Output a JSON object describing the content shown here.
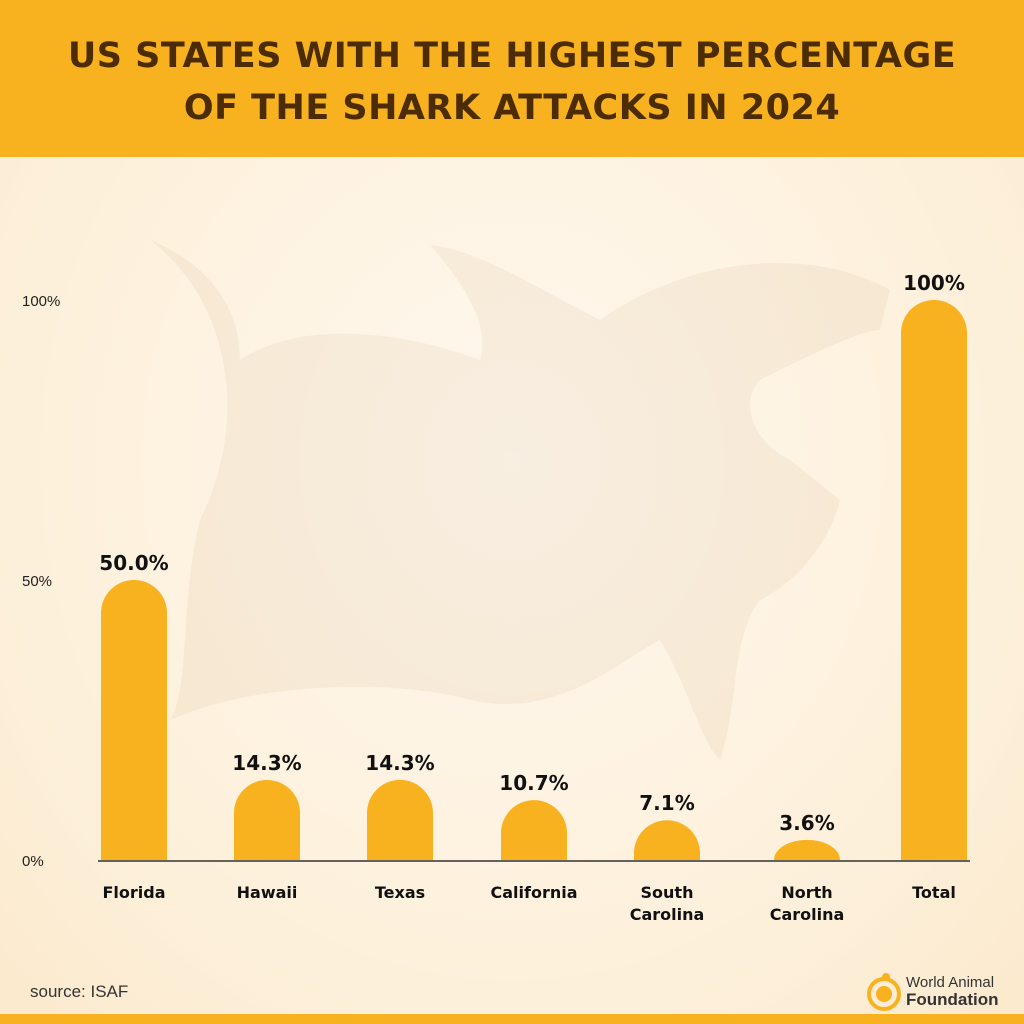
{
  "title_line1": "US STATES WITH THE HIGHEST PERCENTAGE",
  "title_line2": "OF THE SHARK ATTACKS IN 2024",
  "source": "source: ISAF",
  "logo": {
    "line1": "World Animal",
    "line2": "Foundation"
  },
  "colors": {
    "bar": "#f8b220",
    "header": "#f8b220",
    "title": "#4b2c06"
  },
  "chart_data": {
    "type": "bar",
    "title": "US STATES WITH THE HIGHEST PERCENTAGE OF THE SHARK ATTACKS IN 2024",
    "categories": [
      "Florida",
      "Hawaii",
      "Texas",
      "California",
      "South Carolina",
      "North Carolina",
      "Total"
    ],
    "category_lines": [
      [
        "Florida"
      ],
      [
        "Hawaii"
      ],
      [
        "Texas"
      ],
      [
        "California"
      ],
      [
        "South",
        "Carolina"
      ],
      [
        "North",
        "Carolina"
      ],
      [
        "Total"
      ]
    ],
    "values": [
      50.0,
      14.3,
      14.3,
      10.7,
      7.1,
      3.6,
      100
    ],
    "data_labels": [
      "50.0%",
      "14.3%",
      "14.3%",
      "10.7%",
      "7.1%",
      "3.6%",
      "100%"
    ],
    "yticks": [
      0,
      50,
      100
    ],
    "ytick_labels": [
      "0%",
      "50%",
      "100%"
    ],
    "ylim": [
      0,
      100
    ],
    "grid": false
  }
}
